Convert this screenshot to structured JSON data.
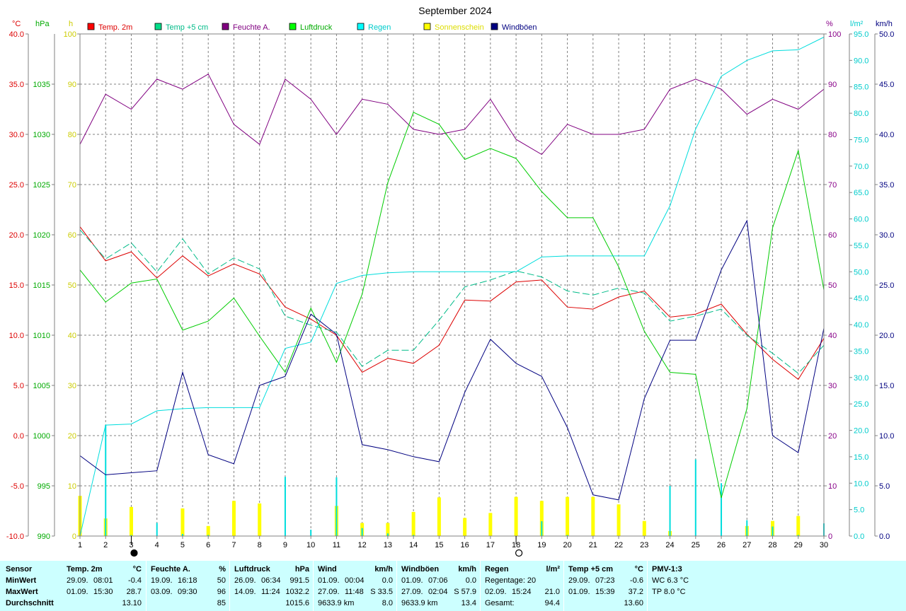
{
  "chart_data": {
    "type": "line",
    "title": "September 2024",
    "x": [
      1,
      2,
      3,
      4,
      5,
      6,
      7,
      8,
      9,
      10,
      11,
      12,
      13,
      14,
      15,
      16,
      17,
      18,
      19,
      20,
      21,
      22,
      23,
      24,
      25,
      26,
      27,
      28,
      29,
      30
    ],
    "xlim": [
      1,
      30
    ],
    "axes": [
      {
        "id": "temp",
        "unit": "°C",
        "side": "left",
        "range": [
          -10,
          40
        ],
        "ticks": [
          "-10.0",
          "-5.0",
          "0.0",
          "5.0",
          "10.0",
          "15.0",
          "20.0",
          "25.0",
          "30.0",
          "35.0",
          "40.0"
        ],
        "color": "#dd0000"
      },
      {
        "id": "pressure",
        "unit": "hPa",
        "side": "left",
        "range": [
          990,
          1040
        ],
        "ticks": [
          "990",
          "995",
          "1000",
          "1005",
          "1010",
          "1015",
          "1020",
          "1025",
          "1030",
          "1035"
        ],
        "color": "#00aa00"
      },
      {
        "id": "hours",
        "unit": "h",
        "side": "left",
        "range": [
          0,
          100
        ],
        "ticks": [
          "0",
          "10",
          "20",
          "30",
          "40",
          "50",
          "60",
          "70",
          "80",
          "90",
          "100"
        ],
        "color": "#cccc00"
      },
      {
        "id": "humidity",
        "unit": "%",
        "side": "right",
        "range": [
          0,
          100
        ],
        "ticks": [
          "0",
          "10",
          "20",
          "30",
          "40",
          "50",
          "60",
          "70",
          "80",
          "90",
          "100"
        ],
        "color": "#880088"
      },
      {
        "id": "rain",
        "unit": "l/m²",
        "side": "right",
        "range": [
          0,
          95
        ],
        "ticks": [
          "0.0",
          "5.0",
          "10.0",
          "15.0",
          "20.0",
          "25.0",
          "30.0",
          "35.0",
          "40.0",
          "45.0",
          "50.0",
          "55.0",
          "60.0",
          "65.0",
          "70.0",
          "75.0",
          "80.0",
          "85.0",
          "90.0",
          "95.0"
        ],
        "color": "#00cccc"
      },
      {
        "id": "wind",
        "unit": "km/h",
        "side": "right",
        "range": [
          0,
          50
        ],
        "ticks": [
          "0.0",
          "5.0",
          "10.0",
          "15.0",
          "20.0",
          "25.0",
          "30.0",
          "35.0",
          "40.0",
          "45.0",
          "50.0"
        ],
        "color": "#000080"
      }
    ],
    "grid": true,
    "legend_position": "top",
    "series": [
      {
        "name": "Temp. 2m",
        "axis": "temp",
        "style": "solid",
        "color": "#dd0000",
        "values": [
          20.8,
          17.4,
          18.3,
          15.7,
          17.9,
          15.9,
          17.1,
          16.1,
          12.8,
          11.6,
          10.0,
          6.3,
          7.7,
          7.2,
          9.0,
          13.5,
          13.4,
          15.3,
          15.5,
          12.8,
          12.6,
          13.8,
          14.4,
          11.8,
          12.1,
          13.1,
          10.1,
          7.6,
          5.6,
          9.7
        ]
      },
      {
        "name": "Temp +5 cm",
        "axis": "temp",
        "style": "dashed",
        "color": "#00bb88",
        "values": [
          20.5,
          17.6,
          19.2,
          16.3,
          19.6,
          16.1,
          17.7,
          16.6,
          11.9,
          11.0,
          10.3,
          6.9,
          8.5,
          8.5,
          11.5,
          14.8,
          15.5,
          16.4,
          15.8,
          14.4,
          14.0,
          14.7,
          14.2,
          11.4,
          11.9,
          12.6,
          10.0,
          8.2,
          6.2,
          9.0
        ]
      },
      {
        "name": "Feuchte A.",
        "axis": "humidity",
        "style": "solid",
        "color": "#800080",
        "values": [
          78,
          88,
          85,
          91,
          89,
          92,
          82,
          78,
          91,
          87,
          80,
          87,
          86,
          81,
          80,
          81,
          87,
          79,
          76,
          82,
          80,
          80,
          81,
          89,
          91,
          89,
          84,
          87,
          85,
          89
        ]
      },
      {
        "name": "Luftdruck",
        "axis": "pressure",
        "style": "solid",
        "color": "#00cc00",
        "values": [
          1016.5,
          1013.3,
          1015.2,
          1015.6,
          1010.5,
          1011.4,
          1013.7,
          1009.9,
          1006.3,
          1012.7,
          1007.3,
          1014.1,
          1025.2,
          1032.2,
          1031.0,
          1027.5,
          1028.6,
          1027.6,
          1024.3,
          1021.7,
          1021.7,
          1016.8,
          1010.4,
          1006.3,
          1006.1,
          993.8,
          1002.7,
          1020.7,
          1028.4,
          1014.5
        ]
      },
      {
        "name": "Regen",
        "axis": "rain",
        "style": "solid",
        "color": "#00dddd",
        "values": [
          0.0,
          21.0,
          21.2,
          23.7,
          24.1,
          24.3,
          24.3,
          24.3,
          35.5,
          36.7,
          47.8,
          49.3,
          49.8,
          50.0,
          50.0,
          50.0,
          50.0,
          50.0,
          52.8,
          53.0,
          53.0,
          53.0,
          53.0,
          62.5,
          77.0,
          87.0,
          90.0,
          91.8,
          92.0,
          94.4
        ]
      },
      {
        "name": "Windböen",
        "axis": "wind",
        "style": "solid",
        "color": "#000080",
        "values": [
          8.0,
          6.1,
          6.3,
          6.5,
          16.3,
          8.1,
          7.2,
          15.0,
          15.9,
          22.1,
          20.1,
          9.1,
          8.6,
          7.9,
          7.4,
          14.3,
          19.6,
          17.2,
          15.9,
          10.8,
          4.1,
          3.6,
          13.7,
          19.5,
          19.5,
          26.5,
          31.4,
          10.0,
          8.3,
          20.7
        ]
      }
    ],
    "bars": [
      {
        "name": "Sonnenschein",
        "axis": "hours",
        "color": "#ffff00",
        "values": [
          8.0,
          3.5,
          5.8,
          0.0,
          5.5,
          2.0,
          7.0,
          6.5,
          0.0,
          0.0,
          6.0,
          2.6,
          2.6,
          4.8,
          7.7,
          3.6,
          4.6,
          7.8,
          7.0,
          7.8,
          7.8,
          6.3,
          3.0,
          1.0,
          0.0,
          0.0,
          2.0,
          3.0,
          4.0,
          0.0
        ]
      },
      {
        "name": "Regen",
        "axis": "rain",
        "color": "#00dddd",
        "values": [
          0.0,
          21.0,
          0.2,
          2.5,
          0.4,
          0.2,
          0.0,
          0.0,
          11.2,
          1.2,
          11.1,
          1.5,
          0.5,
          0.2,
          0.0,
          0.0,
          0.0,
          0.0,
          2.8,
          0.2,
          0.0,
          0.0,
          0.0,
          9.5,
          14.5,
          10.0,
          3.0,
          1.8,
          0.2,
          2.4
        ]
      }
    ],
    "moon_markers": [
      {
        "x": 3,
        "phase": "new"
      },
      {
        "x": 18,
        "phase": "full"
      }
    ]
  },
  "stats": {
    "row_labels": {
      "min": "MinWert",
      "max": "MaxWert",
      "avg": "Durchschnitt"
    },
    "sensor_label": "Sensor",
    "blocks": [
      {
        "title": "Temp. 2m",
        "unit": "°C",
        "min": {
          "date": "29.09.",
          "time": "08:01",
          "value": "-0.4"
        },
        "max": {
          "date": "01.09.",
          "time": "15:30",
          "value": "28.7"
        },
        "avg": {
          "value": "13.10"
        }
      },
      {
        "title": "Feuchte A.",
        "unit": "%",
        "min": {
          "date": "19.09.",
          "time": "16:18",
          "value": "50"
        },
        "max": {
          "date": "03.09.",
          "time": "09:30",
          "value": "96"
        },
        "avg": {
          "value": "85"
        }
      },
      {
        "title": "Luftdruck",
        "unit": "hPa",
        "min": {
          "date": "26.09.",
          "time": "06:34",
          "value": "991.5"
        },
        "max": {
          "date": "14.09.",
          "time": "11:24",
          "value": "1032.2"
        },
        "avg": {
          "value": "1015.6"
        }
      },
      {
        "title": "Wind",
        "unit": "km/h",
        "min": {
          "date": "01.09.",
          "time": "00:04",
          "value": "0.0"
        },
        "max": {
          "date": "27.09.",
          "time": "11:48",
          "value": "S 33.5"
        },
        "avg": {
          "date": "9633.9 km",
          "value": "8.0"
        }
      },
      {
        "title": "Windböen",
        "unit": "km/h",
        "min": {
          "date": "01.09.",
          "time": "07:06",
          "value": "0.0"
        },
        "max": {
          "date": "27.09.",
          "time": "02:04",
          "value": "S 57.9"
        },
        "avg": {
          "date": "9633.9 km",
          "value": "13.4"
        }
      },
      {
        "title": "Regen",
        "unit": "l/m²",
        "min": {
          "date": "Regentage: 20",
          "time": "",
          "value": ""
        },
        "max": {
          "date": "02.09.",
          "time": "15:24",
          "value": "21.0"
        },
        "avg": {
          "date": "Gesamt:",
          "value": "94.4"
        }
      },
      {
        "title": "Temp +5 cm",
        "unit": "°C",
        "min": {
          "date": "29.09.",
          "time": "07:23",
          "value": "-0.6"
        },
        "max": {
          "date": "01.09.",
          "time": "15:39",
          "value": "37.2"
        },
        "avg": {
          "value": "13.60"
        }
      },
      {
        "title": "PMV-1:3",
        "unit": "",
        "min": {
          "date": "WC 6.3 °C",
          "time": "",
          "value": ""
        },
        "max": {
          "date": "TP 8.0 °C",
          "time": "",
          "value": ""
        },
        "avg": {
          "value": ""
        }
      }
    ]
  }
}
